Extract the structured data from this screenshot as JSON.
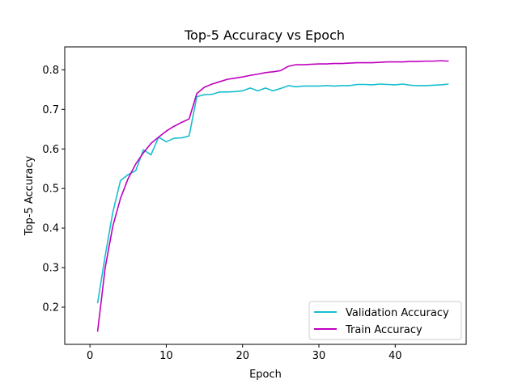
{
  "chart_data": {
    "type": "line",
    "title": "Top-5 Accuracy vs Epoch",
    "xlabel": "Epoch",
    "ylabel": "Top-5 Accuracy",
    "xlim": [
      -3.3,
      49.3
    ],
    "ylim": [
      0.106,
      0.858
    ],
    "xticks": [
      0,
      10,
      20,
      30,
      40
    ],
    "yticks": [
      0.2,
      0.3,
      0.4,
      0.5,
      0.6,
      0.7,
      0.8
    ],
    "grid": false,
    "legend_position": "lower-right",
    "x": [
      1,
      2,
      3,
      4,
      5,
      6,
      7,
      8,
      9,
      10,
      11,
      12,
      13,
      14,
      15,
      16,
      17,
      18,
      19,
      20,
      21,
      22,
      23,
      24,
      25,
      26,
      27,
      28,
      29,
      30,
      31,
      32,
      33,
      34,
      35,
      36,
      37,
      38,
      39,
      40,
      41,
      42,
      43,
      44,
      45,
      46,
      47
    ],
    "series": [
      {
        "name": "Validation Accuracy",
        "color": "#17becf",
        "values": [
          0.21,
          0.33,
          0.44,
          0.52,
          0.535,
          0.545,
          0.598,
          0.585,
          0.63,
          0.618,
          0.627,
          0.628,
          0.633,
          0.732,
          0.737,
          0.738,
          0.744,
          0.744,
          0.745,
          0.747,
          0.754,
          0.747,
          0.754,
          0.747,
          0.753,
          0.76,
          0.757,
          0.759,
          0.759,
          0.759,
          0.76,
          0.759,
          0.76,
          0.76,
          0.763,
          0.763,
          0.762,
          0.764,
          0.763,
          0.762,
          0.764,
          0.761,
          0.76,
          0.76,
          0.761,
          0.762,
          0.764
        ]
      },
      {
        "name": "Train Accuracy",
        "color": "#bf00bf",
        "values": [
          0.138,
          0.3,
          0.405,
          0.475,
          0.525,
          0.562,
          0.59,
          0.614,
          0.63,
          0.645,
          0.657,
          0.667,
          0.676,
          0.74,
          0.756,
          0.764,
          0.77,
          0.776,
          0.779,
          0.782,
          0.786,
          0.789,
          0.793,
          0.795,
          0.798,
          0.809,
          0.813,
          0.813,
          0.814,
          0.815,
          0.815,
          0.816,
          0.816,
          0.817,
          0.818,
          0.818,
          0.818,
          0.819,
          0.82,
          0.82,
          0.82,
          0.821,
          0.821,
          0.822,
          0.822,
          0.823,
          0.822
        ]
      }
    ]
  }
}
